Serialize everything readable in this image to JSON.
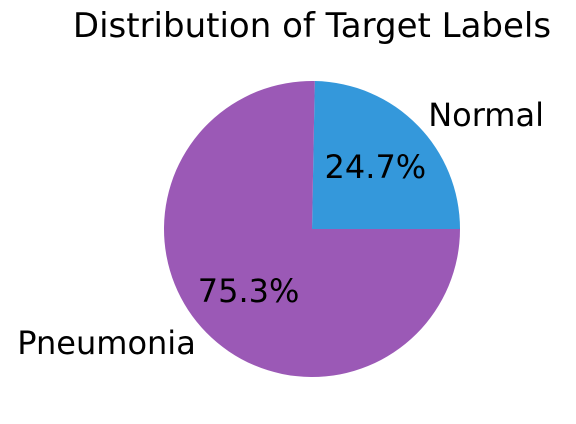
{
  "chart_data": {
    "type": "pie",
    "title": "Distribution of Target Labels",
    "categories": [
      "Normal",
      "Pneumonia"
    ],
    "values": [
      24.7,
      75.3
    ],
    "percent_labels": [
      "24.7%",
      "75.3%"
    ],
    "colors": [
      "#3498db",
      "#9b59b6"
    ],
    "start_angle_deg": 0,
    "direction": "counterclockwise",
    "legend": "none",
    "grid": false
  }
}
